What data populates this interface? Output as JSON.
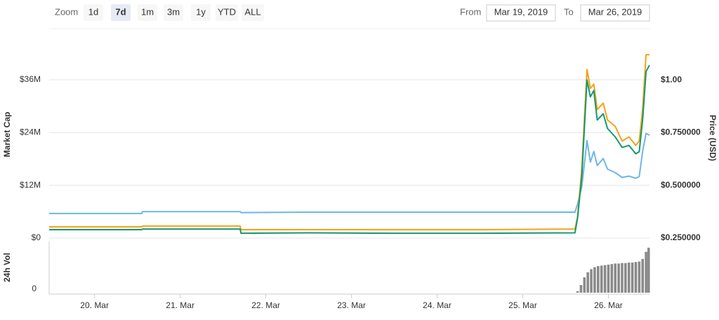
{
  "controls": {
    "zoom_label": "Zoom",
    "buttons": [
      "1d",
      "7d",
      "1m",
      "3m",
      "1y",
      "YTD",
      "ALL"
    ],
    "selected_button": 1,
    "from_label": "From",
    "from_date": "Mar 19, 2019",
    "to_label": "To",
    "to_date": "Mar 26, 2019"
  },
  "chart_data": [
    {
      "type": "line",
      "ylabel": "Market Cap",
      "y2label": "Price (USD)",
      "x": [
        19.47,
        20.55,
        20.56,
        21.7,
        21.71,
        22.5,
        23.5,
        24.5,
        25.61,
        25.64,
        25.69,
        25.75,
        25.79,
        25.83,
        25.87,
        25.94,
        25.99,
        26.08,
        26.16,
        26.24,
        26.32,
        26.36,
        26.4,
        26.44,
        26.48
      ],
      "xlim": [
        19.47,
        26.48
      ],
      "xticks": [
        {
          "value": 20,
          "label": "20. Mar"
        },
        {
          "value": 21,
          "label": "21. Mar"
        },
        {
          "value": 22,
          "label": "22. Mar"
        },
        {
          "value": 23,
          "label": "23. Mar"
        },
        {
          "value": 24,
          "label": "24. Mar"
        },
        {
          "value": 25,
          "label": "25. Mar"
        },
        {
          "value": 26,
          "label": "26. Mar"
        }
      ],
      "ylim": [
        0,
        47000000
      ],
      "yticks": [
        {
          "value": 0,
          "label": "$0"
        },
        {
          "value": 12000000,
          "label": "$12M"
        },
        {
          "value": 24000000,
          "label": "$24M"
        },
        {
          "value": 36000000,
          "label": "$36M"
        }
      ],
      "y2lim": [
        0.25,
        1.23
      ],
      "y2ticks": [
        {
          "value": 0.25,
          "label": "$0.250000"
        },
        {
          "value": 0.5,
          "label": "$0.500000"
        },
        {
          "value": 0.75,
          "label": "$0.750000"
        },
        {
          "value": 1,
          "label": "$1.00"
        }
      ],
      "grid": true,
      "series": [
        {
          "color": "#6db6e6",
          "values": [
            5600000,
            5600000,
            6000000,
            6000000,
            5800000,
            5900000,
            5900000,
            5900000,
            5900000,
            7700000,
            11700000,
            22200000,
            17300000,
            19700000,
            16500000,
            18100000,
            15700000,
            14900000,
            13800000,
            14100000,
            13600000,
            14000000,
            19700000,
            23800000,
            23400000
          ]
        },
        {
          "color": "#f4a11a",
          "axis": "y2",
          "values": [
            0.303,
            0.303,
            0.307,
            0.307,
            0.29,
            0.29,
            0.29,
            0.29,
            0.293,
            0.35,
            0.58,
            1.05,
            0.96,
            0.98,
            0.86,
            0.89,
            0.81,
            0.78,
            0.71,
            0.73,
            0.69,
            0.71,
            0.86,
            1.12,
            1.12
          ]
        },
        {
          "color": "#14996c",
          "axis": "y2",
          "values": [
            0.29,
            0.29,
            0.293,
            0.293,
            0.273,
            0.275,
            0.273,
            0.273,
            0.275,
            0.343,
            0.543,
            1.0,
            0.92,
            0.95,
            0.81,
            0.84,
            0.77,
            0.73,
            0.68,
            0.69,
            0.65,
            0.66,
            0.81,
            1.04,
            1.07
          ]
        }
      ]
    },
    {
      "type": "bar",
      "ylabel": "24h Vol",
      "x": [
        25.64,
        25.68,
        25.72,
        25.76,
        25.8,
        25.84,
        25.88,
        25.92,
        25.96,
        26.0,
        26.04,
        26.08,
        26.12,
        26.16,
        26.2,
        26.24,
        26.28,
        26.32,
        26.36,
        26.4,
        26.44,
        26.47
      ],
      "values": [
        3,
        15,
        30,
        40,
        46,
        50,
        52,
        53,
        54,
        55,
        56,
        57,
        57,
        58,
        58,
        59,
        59,
        60,
        61,
        66,
        80,
        88
      ],
      "color": "#8a8a8a",
      "xlim": [
        19.47,
        26.48
      ],
      "ylim": [
        0,
        100
      ],
      "yticks": [
        0
      ]
    }
  ]
}
